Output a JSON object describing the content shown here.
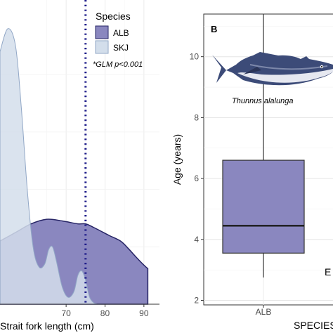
{
  "chart_data": [
    {
      "type": "area",
      "xlabel": "Strait fork length (cm)",
      "ylabel": "",
      "xlim": [
        53,
        94
      ],
      "x_ticks": [
        70,
        80,
        90
      ],
      "x_tick_labels": [
        "70",
        "80",
        "90"
      ],
      "grid": true,
      "cutoff_line": 75,
      "legend": {
        "title": "Species",
        "placement": "top-right",
        "entries": [
          "ALB",
          "SKJ"
        ],
        "note": "*GLM p<0.001"
      },
      "series": [
        {
          "name": "ALB",
          "color": "#8A87BF",
          "edge": "#262465",
          "x": [
            53,
            57,
            61,
            65,
            69,
            73,
            75,
            77,
            81,
            84,
            86,
            88,
            90,
            91
          ],
          "y": [
            0.11,
            0.125,
            0.14,
            0.148,
            0.145,
            0.14,
            0.14,
            0.134,
            0.12,
            0.11,
            0.097,
            0.082,
            0.068,
            0.062
          ]
        },
        {
          "name": "SKJ",
          "color": "#D3DEEB",
          "edge": "#91A7C6",
          "x": [
            53,
            55,
            57,
            58.5,
            60,
            61.5,
            63,
            64.5,
            65.5,
            66.5,
            67.5,
            69,
            70.5,
            72,
            73,
            74,
            75,
            76,
            77,
            78,
            79
          ],
          "y": [
            0.44,
            0.48,
            0.45,
            0.34,
            0.2,
            0.1,
            0.065,
            0.07,
            0.095,
            0.1,
            0.075,
            0.03,
            0.012,
            0.022,
            0.05,
            0.058,
            0.042,
            0.013,
            0.003,
            0,
            0
          ]
        }
      ]
    },
    {
      "type": "box",
      "panel_label": "B",
      "xlabel": "SPECIES",
      "ylabel": "Age (years)",
      "ylim": [
        1.85,
        11.4
      ],
      "y_ticks": [
        2,
        4,
        6,
        8,
        10
      ],
      "categories": [
        "ALB"
      ],
      "grid": true,
      "species_caption": "Thunnus alalunga",
      "boxes": [
        {
          "category": "ALB",
          "min": 2.75,
          "q1": 3.55,
          "median": 4.45,
          "q3": 6.6,
          "max": 11.4,
          "color": "#8A87BF"
        }
      ],
      "edge_glyph": "E"
    }
  ]
}
